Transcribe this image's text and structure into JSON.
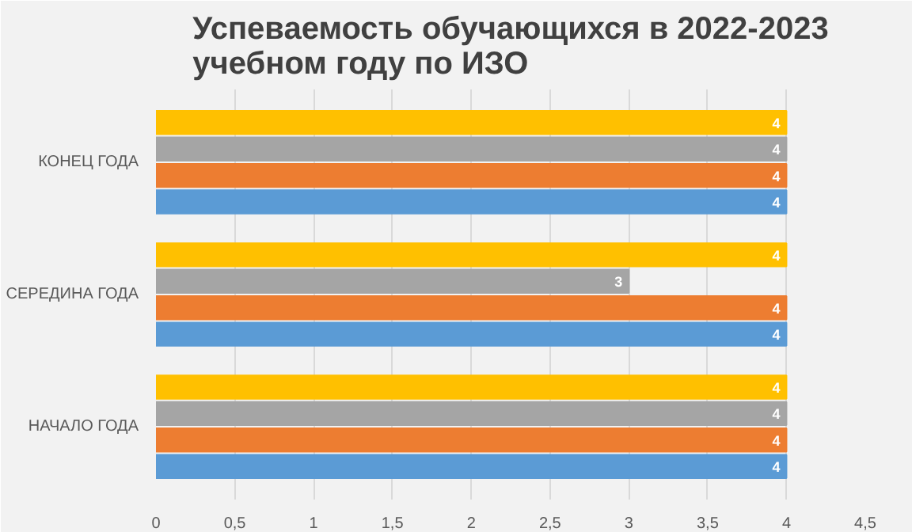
{
  "chart_data": {
    "type": "bar",
    "orientation": "horizontal",
    "title": "Успеваемость обучающихся в 2022-2023 учебном году по ИЗО",
    "categories": [
      "КОНЕЦ ГОДА",
      "СЕРЕДИНА ГОДА",
      "НАЧАЛО ГОДА"
    ],
    "series": [
      {
        "color": "#5b9bd5",
        "values": [
          4,
          4,
          4
        ]
      },
      {
        "color": "#ed7d31",
        "values": [
          4,
          4,
          4
        ]
      },
      {
        "color": "#a5a5a5",
        "values": [
          4,
          3,
          4
        ]
      },
      {
        "color": "#ffc000",
        "values": [
          4,
          4,
          4
        ]
      }
    ],
    "xlim": [
      0,
      4.5
    ],
    "xticks": [
      0,
      {
        "value": 0.5,
        "label": "0,5"
      },
      1,
      {
        "value": 1.5,
        "label": "1,5"
      },
      2,
      {
        "value": 2.5,
        "label": "2,5"
      },
      3,
      {
        "value": 3.5,
        "label": "3,5"
      },
      4,
      {
        "value": 4.5,
        "label": "4,5"
      }
    ],
    "grid": "x",
    "data_labels": true
  }
}
